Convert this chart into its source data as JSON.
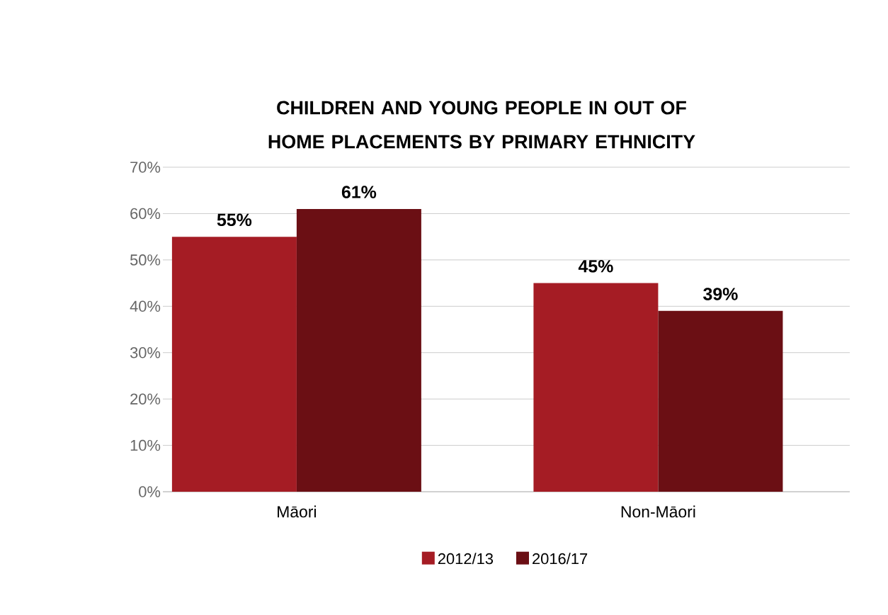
{
  "chart_data": {
    "type": "bar",
    "title": "CHILDREN AND YOUNG PEOPLE IN OUT OF HOME PLACEMENTS BY PRIMARY ETHNICITY",
    "categories": [
      "Māori",
      "Non-Māori"
    ],
    "series": [
      {
        "name": "2012/13",
        "color": "#a51c24",
        "values": [
          55,
          45
        ],
        "value_labels": [
          "55%",
          "45%"
        ]
      },
      {
        "name": "2016/17",
        "color": "#6b0f14",
        "values": [
          61,
          39
        ],
        "value_labels": [
          "61%",
          "39%"
        ]
      }
    ],
    "ylim": [
      0,
      70
    ],
    "yticks": [
      {
        "value": 0,
        "label": "0%"
      },
      {
        "value": 10,
        "label": "10%"
      },
      {
        "value": 20,
        "label": "20%"
      },
      {
        "value": 30,
        "label": "30%"
      },
      {
        "value": 40,
        "label": "40%"
      },
      {
        "value": 50,
        "label": "50%"
      },
      {
        "value": 60,
        "label": "60%"
      },
      {
        "value": 70,
        "label": "70%"
      }
    ],
    "grid": "y",
    "legend": "bottom"
  }
}
